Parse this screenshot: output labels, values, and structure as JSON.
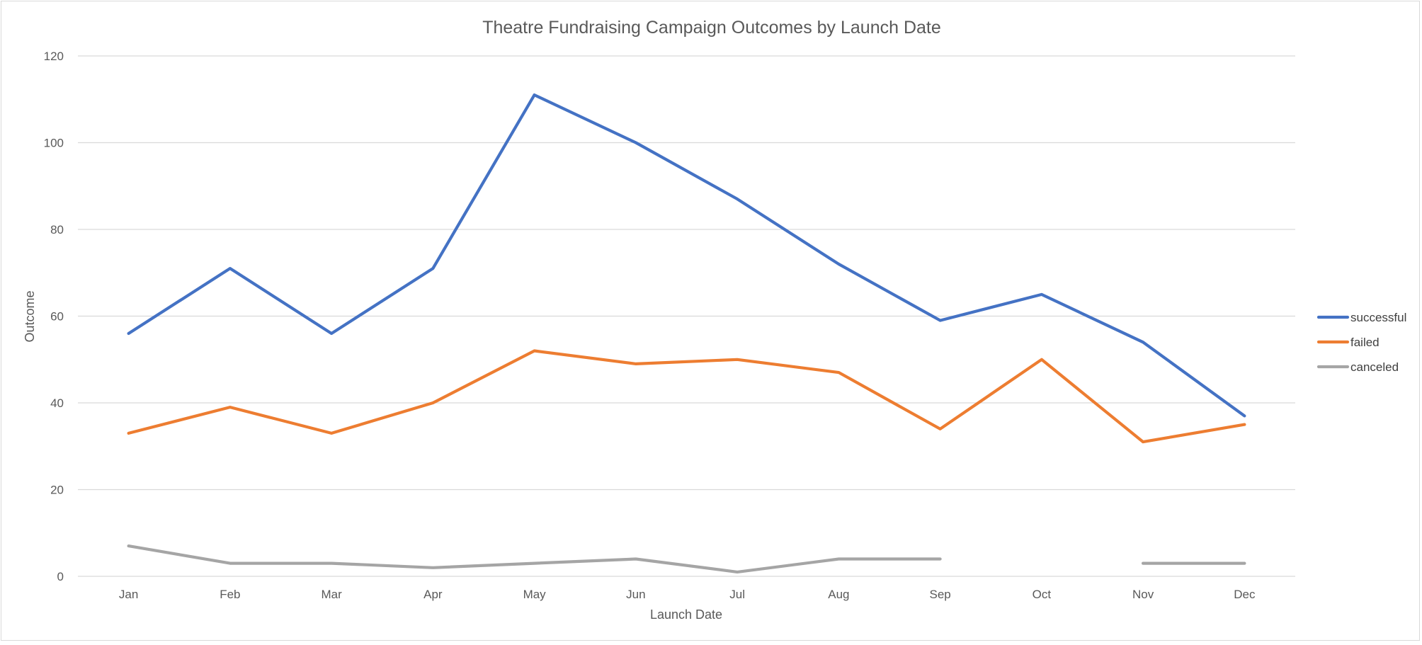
{
  "chart_data": {
    "type": "line",
    "title": "Theatre Fundraising Campaign Outcomes by Launch Date",
    "xlabel": "Launch Date",
    "ylabel": "Outcome",
    "categories": [
      "Jan",
      "Feb",
      "Mar",
      "Apr",
      "May",
      "Jun",
      "Jul",
      "Aug",
      "Sep",
      "Oct",
      "Nov",
      "Dec"
    ],
    "ylim": [
      0,
      120
    ],
    "yticks": [
      "0",
      "20",
      "40",
      "60",
      "80",
      "100",
      "120"
    ],
    "grid": true,
    "legend_position": "right",
    "series": [
      {
        "name": "successful",
        "color": "#4472c4",
        "values": [
          56,
          71,
          56,
          71,
          111,
          100,
          87,
          72,
          59,
          65,
          54,
          37
        ]
      },
      {
        "name": "failed",
        "color": "#ed7d31",
        "values": [
          33,
          39,
          33,
          40,
          52,
          49,
          50,
          47,
          34,
          50,
          31,
          35
        ]
      },
      {
        "name": "canceled",
        "color": "#a5a5a5",
        "values": [
          7,
          3,
          3,
          2,
          3,
          4,
          1,
          4,
          4,
          null,
          3,
          3
        ]
      }
    ]
  }
}
